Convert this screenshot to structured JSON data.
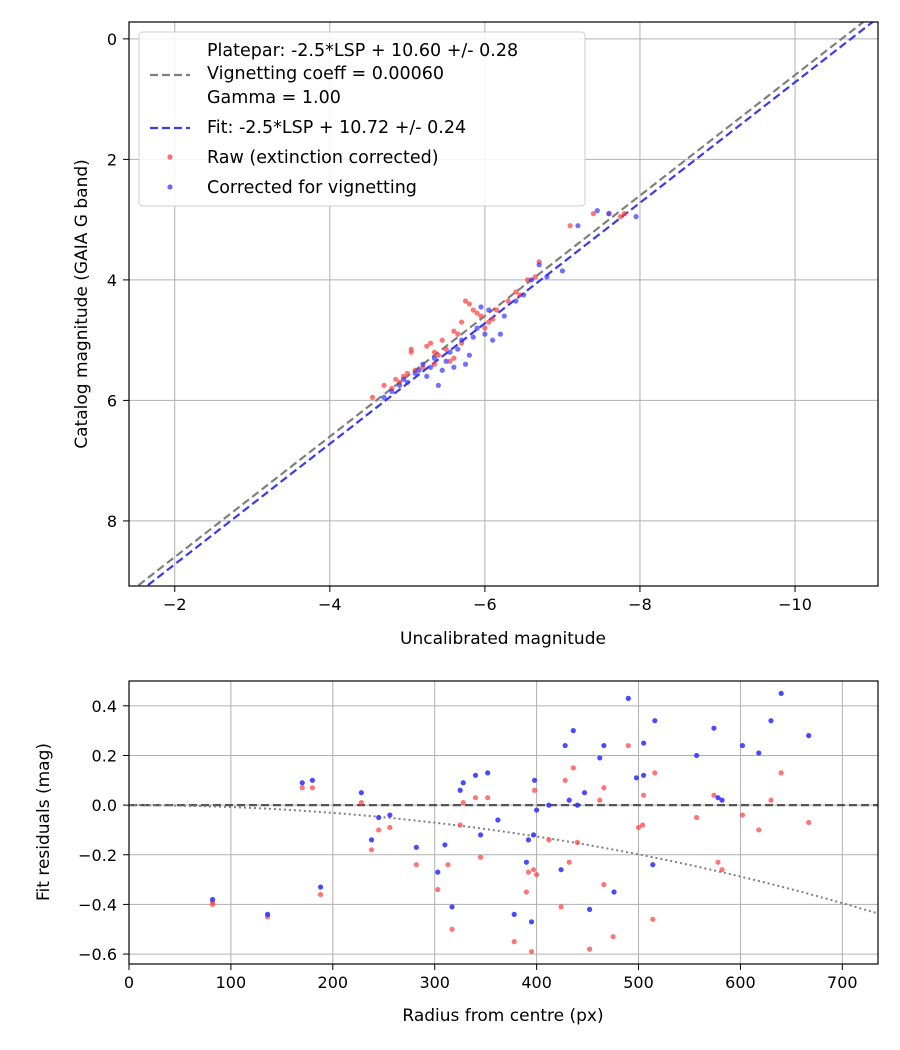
{
  "chart_data": [
    {
      "type": "scatter",
      "xlabel": "Uncalibrated magnitude",
      "ylabel": "Catalog magnitude (GAIA G band)",
      "xlim": [
        -1.41,
        -11.07
      ],
      "ylim": [
        9.08,
        -0.28
      ],
      "x_invert": true,
      "y_invert": true,
      "grid": true,
      "xticks": [
        -2,
        -4,
        -6,
        -8,
        -10
      ],
      "xtick_labels": [
        "−2",
        "−4",
        "−6",
        "−8",
        "−10"
      ],
      "yticks": [
        0,
        2,
        4,
        6,
        8
      ],
      "ytick_labels": [
        "0",
        "2",
        "4",
        "6",
        "8"
      ],
      "legend": {
        "placement": "top-left",
        "entries": [
          {
            "label": "Platepar: -2.5*LSP + 10.60 +/- 0.28",
            "style": "none"
          },
          {
            "label": "Vignetting coeff = 0.00060",
            "style": "dashed-line",
            "color": "#808080"
          },
          {
            "label": "Gamma = 1.00",
            "style": "none"
          },
          {
            "label": "Fit: -2.5*LSP + 10.72 +/- 0.24",
            "style": "dashed-line",
            "color": "#3a3aee"
          },
          {
            "label": "Raw (extinction corrected)",
            "style": "marker",
            "color": "#ff3b3b"
          },
          {
            "label": "Corrected for vignetting",
            "style": "marker",
            "color": "#3535ff"
          }
        ]
      },
      "lines": [
        {
          "name": "Platepar",
          "intercept": 10.6,
          "color": "#808080",
          "dash": "dashed"
        },
        {
          "name": "Fit",
          "intercept": 10.72,
          "color": "#3a3aee",
          "dash": "dashed"
        }
      ],
      "series": [
        {
          "name": "Raw (extinction corrected)",
          "color": "#ff3b3b",
          "points": [
            [
              -4.55,
              5.95
            ],
            [
              -4.7,
              5.75
            ],
            [
              -4.8,
              5.8
            ],
            [
              -4.85,
              5.65
            ],
            [
              -4.9,
              5.7
            ],
            [
              -4.95,
              5.6
            ],
            [
              -5.0,
              5.55
            ],
            [
              -5.05,
              5.2
            ],
            [
              -5.05,
              5.15
            ],
            [
              -5.1,
              5.5
            ],
            [
              -5.2,
              5.45
            ],
            [
              -5.25,
              5.1
            ],
            [
              -5.3,
              5.05
            ],
            [
              -5.35,
              5.4
            ],
            [
              -5.35,
              5.2
            ],
            [
              -5.4,
              5.25
            ],
            [
              -5.45,
              5.0
            ],
            [
              -5.5,
              5.15
            ],
            [
              -5.55,
              5.35
            ],
            [
              -5.6,
              4.85
            ],
            [
              -5.6,
              5.3
            ],
            [
              -5.65,
              4.9
            ],
            [
              -5.7,
              5.05
            ],
            [
              -5.7,
              4.7
            ],
            [
              -5.75,
              4.35
            ],
            [
              -5.8,
              4.4
            ],
            [
              -5.85,
              4.5
            ],
            [
              -5.9,
              4.55
            ],
            [
              -5.95,
              4.6
            ],
            [
              -6.0,
              4.8
            ],
            [
              -6.05,
              4.7
            ],
            [
              -6.1,
              4.65
            ],
            [
              -6.15,
              4.5
            ],
            [
              -6.3,
              4.35
            ],
            [
              -6.4,
              4.2
            ],
            [
              -6.45,
              4.25
            ],
            [
              -6.55,
              4.0
            ],
            [
              -6.65,
              3.95
            ],
            [
              -6.7,
              3.7
            ],
            [
              -7.1,
              3.1
            ],
            [
              -7.4,
              2.9
            ],
            [
              -7.6,
              2.9
            ],
            [
              -7.75,
              2.95
            ],
            [
              -7.8,
              2.9
            ]
          ]
        },
        {
          "name": "Corrected for vignetting",
          "color": "#3535ff",
          "points": [
            [
              -4.7,
              5.95
            ],
            [
              -4.8,
              5.85
            ],
            [
              -4.9,
              5.75
            ],
            [
              -4.95,
              5.65
            ],
            [
              -5.0,
              5.7
            ],
            [
              -5.1,
              5.55
            ],
            [
              -5.15,
              5.5
            ],
            [
              -5.2,
              5.4
            ],
            [
              -5.25,
              5.6
            ],
            [
              -5.3,
              5.45
            ],
            [
              -5.35,
              5.3
            ],
            [
              -5.4,
              5.75
            ],
            [
              -5.45,
              5.5
            ],
            [
              -5.5,
              5.35
            ],
            [
              -5.55,
              5.2
            ],
            [
              -5.6,
              5.45
            ],
            [
              -5.65,
              5.15
            ],
            [
              -5.7,
              5.0
            ],
            [
              -5.75,
              5.4
            ],
            [
              -5.8,
              5.25
            ],
            [
              -5.85,
              4.95
            ],
            [
              -5.9,
              4.8
            ],
            [
              -5.95,
              4.45
            ],
            [
              -6.0,
              4.9
            ],
            [
              -6.05,
              4.5
            ],
            [
              -6.1,
              5.0
            ],
            [
              -6.2,
              4.9
            ],
            [
              -6.25,
              4.6
            ],
            [
              -6.4,
              4.35
            ],
            [
              -6.5,
              4.25
            ],
            [
              -6.6,
              4.0
            ],
            [
              -6.7,
              3.75
            ],
            [
              -6.8,
              3.95
            ],
            [
              -7.0,
              3.85
            ],
            [
              -7.2,
              3.1
            ],
            [
              -7.45,
              2.85
            ],
            [
              -7.6,
              2.9
            ],
            [
              -7.95,
              2.95
            ]
          ]
        }
      ]
    },
    {
      "type": "scatter",
      "xlabel": "Radius from centre (px)",
      "ylabel": "Fit residuals (mag)",
      "xlim": [
        0,
        735
      ],
      "ylim": [
        -0.64,
        0.5
      ],
      "grid": true,
      "xticks": [
        0,
        100,
        200,
        300,
        400,
        500,
        600,
        700
      ],
      "xtick_labels": [
        "0",
        "100",
        "200",
        "300",
        "400",
        "500",
        "600",
        "700"
      ],
      "yticks": [
        0.4,
        0.2,
        0.0,
        -0.2,
        -0.4,
        -0.6
      ],
      "ytick_labels": [
        "0.4",
        "0.2",
        "0.0",
        "−0.2",
        "−0.4",
        "−0.6"
      ],
      "lines": [
        {
          "name": "zero",
          "value": 0,
          "color": "#555555",
          "dash": "dashed"
        },
        {
          "name": "vignetting model",
          "coeff": 0.0006,
          "color": "#808080",
          "dash": "dotted"
        }
      ],
      "series": [
        {
          "name": "Raw (extinction corrected)",
          "color": "#ff3b3b",
          "points": [
            [
              82,
              -0.39
            ],
            [
              82,
              -0.4
            ],
            [
              136,
              -0.45
            ],
            [
              170,
              0.07
            ],
            [
              180,
              0.07
            ],
            [
              188,
              -0.36
            ],
            [
              228,
              0.01
            ],
            [
              238,
              -0.18
            ],
            [
              245,
              -0.1
            ],
            [
              256,
              -0.09
            ],
            [
              282,
              -0.24
            ],
            [
              303,
              -0.34
            ],
            [
              313,
              -0.24
            ],
            [
              317,
              -0.5
            ],
            [
              325,
              -0.08
            ],
            [
              328,
              0.01
            ],
            [
              340,
              0.03
            ],
            [
              345,
              -0.21
            ],
            [
              352,
              0.03
            ],
            [
              378,
              -0.55
            ],
            [
              390,
              -0.35
            ],
            [
              392,
              -0.27
            ],
            [
              395,
              -0.59
            ],
            [
              397,
              -0.26
            ],
            [
              400,
              -0.28
            ],
            [
              398,
              0.06
            ],
            [
              412,
              -0.14
            ],
            [
              424,
              -0.41
            ],
            [
              428,
              0.1
            ],
            [
              432,
              -0.23
            ],
            [
              436,
              0.15
            ],
            [
              440,
              -0.15
            ],
            [
              452,
              -0.58
            ],
            [
              462,
              0.02
            ],
            [
              466,
              -0.32
            ],
            [
              466,
              0.07
            ],
            [
              475,
              -0.53
            ],
            [
              490,
              0.24
            ],
            [
              500,
              -0.09
            ],
            [
              504,
              -0.08
            ],
            [
              505,
              0.04
            ],
            [
              514,
              -0.46
            ],
            [
              516,
              0.13
            ],
            [
              557,
              -0.05
            ],
            [
              574,
              0.04
            ],
            [
              578,
              -0.23
            ],
            [
              582,
              -0.26
            ],
            [
              602,
              -0.04
            ],
            [
              618,
              -0.1
            ],
            [
              630,
              0.02
            ],
            [
              640,
              0.13
            ],
            [
              667,
              -0.07
            ]
          ]
        },
        {
          "name": "Corrected for vignetting",
          "color": "#3535ff",
          "points": [
            [
              82,
              -0.38
            ],
            [
              136,
              -0.44
            ],
            [
              170,
              0.09
            ],
            [
              180,
              0.1
            ],
            [
              188,
              -0.33
            ],
            [
              228,
              0.05
            ],
            [
              238,
              -0.14
            ],
            [
              245,
              -0.05
            ],
            [
              256,
              -0.04
            ],
            [
              282,
              -0.17
            ],
            [
              303,
              -0.27
            ],
            [
              310,
              -0.16
            ],
            [
              317,
              -0.41
            ],
            [
              325,
              0.06
            ],
            [
              328,
              0.09
            ],
            [
              340,
              0.12
            ],
            [
              345,
              -0.12
            ],
            [
              352,
              0.13
            ],
            [
              362,
              -0.06
            ],
            [
              378,
              -0.44
            ],
            [
              390,
              -0.23
            ],
            [
              392,
              -0.14
            ],
            [
              395,
              -0.47
            ],
            [
              397,
              -0.12
            ],
            [
              398,
              0.1
            ],
            [
              400,
              -0.02
            ],
            [
              412,
              0.0
            ],
            [
              424,
              -0.26
            ],
            [
              428,
              0.24
            ],
            [
              432,
              0.02
            ],
            [
              436,
              0.3
            ],
            [
              440,
              0.0
            ],
            [
              447,
              0.05
            ],
            [
              452,
              -0.42
            ],
            [
              462,
              0.19
            ],
            [
              466,
              0.24
            ],
            [
              476,
              -0.35
            ],
            [
              490,
              0.43
            ],
            [
              498,
              0.11
            ],
            [
              505,
              0.12
            ],
            [
              505,
              0.25
            ],
            [
              514,
              -0.24
            ],
            [
              516,
              0.34
            ],
            [
              557,
              0.2
            ],
            [
              574,
              0.31
            ],
            [
              578,
              0.03
            ],
            [
              582,
              0.02
            ],
            [
              602,
              0.24
            ],
            [
              618,
              0.21
            ],
            [
              630,
              0.34
            ],
            [
              640,
              0.45
            ],
            [
              667,
              0.28
            ]
          ]
        }
      ]
    }
  ]
}
